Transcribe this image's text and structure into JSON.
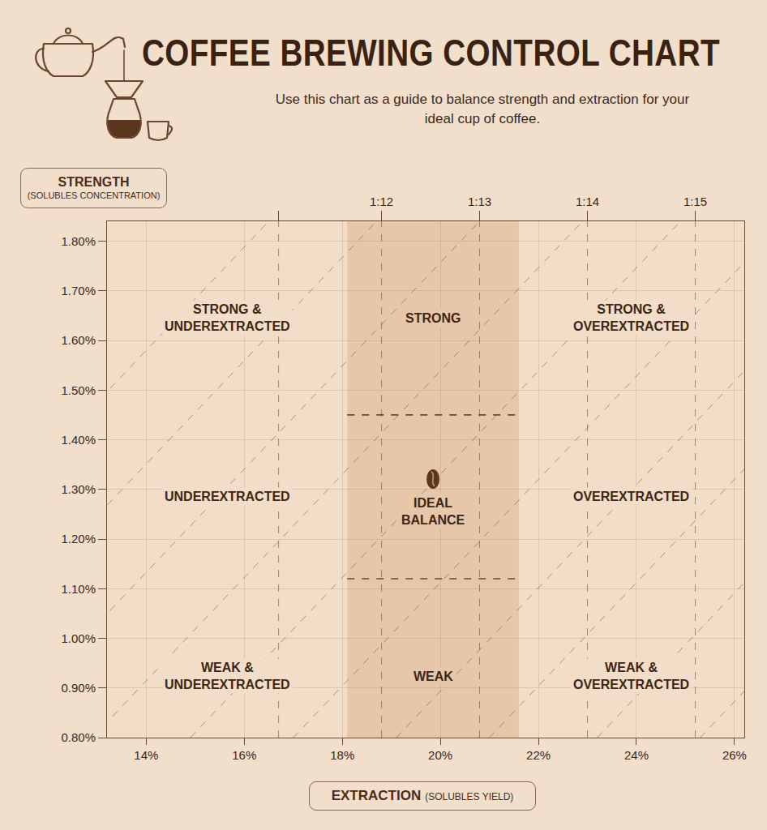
{
  "chart_data": {
    "type": "line",
    "title": "COFFEE BREWING CONTROL CHART",
    "subtitle": "Use this chart as a guide to balance strength and extraction for your ideal cup of coffee.",
    "y_label": "STRENGTH",
    "y_label_detail": "(SOLUBLES CONCENTRATION)",
    "x_label": "EXTRACTION",
    "x_label_detail": "(SOLUBLES YIELD)",
    "xlim": [
      13.2,
      26.2
    ],
    "xticks": [
      {
        "value": 14,
        "label": "14%"
      },
      {
        "value": 16,
        "label": "16%"
      },
      {
        "value": 18,
        "label": "18%"
      },
      {
        "value": 20,
        "label": "20%"
      },
      {
        "value": 22,
        "label": "22%"
      },
      {
        "value": 24,
        "label": "24%"
      },
      {
        "value": 26,
        "label": "26%"
      }
    ],
    "ylim": [
      0.8,
      1.84
    ],
    "yticks": [
      {
        "value": 0.8,
        "label": "0.80%"
      },
      {
        "value": 0.9,
        "label": "0.90%"
      },
      {
        "value": 1.0,
        "label": "1.00%"
      },
      {
        "value": 1.1,
        "label": "1.10%"
      },
      {
        "value": 1.2,
        "label": "1.20%"
      },
      {
        "value": 1.3,
        "label": "1.30%"
      },
      {
        "value": 1.4,
        "label": "1.40%"
      },
      {
        "value": 1.5,
        "label": "1.50%"
      },
      {
        "value": 1.6,
        "label": "1.60%"
      },
      {
        "value": 1.7,
        "label": "1.70%"
      },
      {
        "value": 1.8,
        "label": "1.80%"
      }
    ],
    "grid": true,
    "line_style": "dashed",
    "color": "#e6c7a9",
    "brew_ratios": {
      "x": [
        16.7,
        18.8,
        20.8,
        23.0,
        25.2
      ],
      "labels": [
        null,
        "1:12",
        "1:13",
        "1:14",
        "1:15"
      ]
    },
    "ideal_extraction": [
      18.1,
      21.6
    ],
    "ideal_strength": [
      1.12,
      1.45
    ],
    "extraction_lines": [
      {
        "x": [
          6.5,
          16.5
        ],
        "y": [
          0.8,
          1.84
        ]
      },
      {
        "x": [
          8.7,
          18.7
        ],
        "y": [
          0.8,
          1.84
        ]
      },
      {
        "x": [
          10.8,
          20.8
        ],
        "y": [
          0.8,
          1.84
        ]
      },
      {
        "x": [
          12.9,
          22.9
        ],
        "y": [
          0.8,
          1.84
        ]
      },
      {
        "x": [
          14.9,
          24.9
        ],
        "y": [
          0.8,
          1.84
        ]
      },
      {
        "x": [
          17.0,
          27.0
        ],
        "y": [
          0.8,
          1.84
        ]
      },
      {
        "x": [
          19.1,
          29.1
        ],
        "y": [
          0.8,
          1.84
        ]
      },
      {
        "x": [
          21.0,
          31.0
        ],
        "y": [
          0.8,
          1.84
        ]
      },
      {
        "x": [
          23.2,
          33.2
        ],
        "y": [
          0.8,
          1.84
        ]
      },
      {
        "x": [
          25.3,
          35.3
        ],
        "y": [
          0.8,
          1.84
        ]
      }
    ],
    "regions": [
      [
        [
          "STRONG &",
          "UNDEREXTRACTED"
        ],
        [
          "STRONG"
        ],
        [
          "STRONG &",
          "OVEREXTRACTED"
        ]
      ],
      [
        [
          "UNDEREXTRACTED"
        ],
        [
          "IDEAL",
          "BALANCE"
        ],
        [
          "OVEREXTRACTED"
        ]
      ],
      [
        [
          "WEAK &",
          "UNDEREXTRACTED"
        ],
        [
          "WEAK"
        ],
        [
          "WEAK &",
          "OVEREXTRACTED"
        ]
      ]
    ]
  }
}
